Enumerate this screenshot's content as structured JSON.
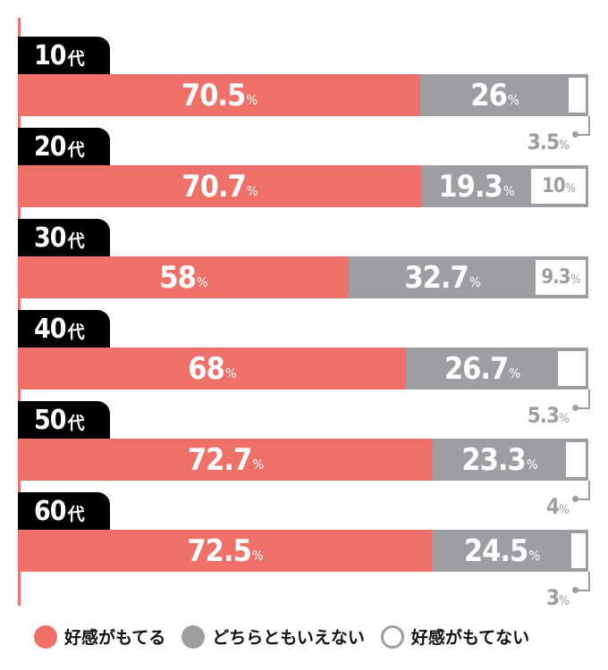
{
  "chart_data": {
    "type": "bar",
    "orientation": "horizontal-stacked-100",
    "categories": [
      "10代",
      "20代",
      "30代",
      "40代",
      "50代",
      "60代"
    ],
    "series": [
      {
        "name": "好感がもてる",
        "color": "#ef7068",
        "values": [
          70.5,
          70.7,
          58,
          68,
          72.7,
          72.5
        ]
      },
      {
        "name": "どちらともいえない",
        "color": "#9e9da2",
        "values": [
          26,
          19.3,
          32.7,
          26.7,
          23.3,
          24.5
        ]
      },
      {
        "name": "好感がもてない",
        "color": "#ffffff",
        "values": [
          3.5,
          10,
          9.3,
          5.3,
          4,
          3
        ]
      }
    ],
    "value_labels": [
      [
        "70.5",
        "26",
        "3.5"
      ],
      [
        "70.7",
        "19.3",
        "10"
      ],
      [
        "58",
        "32.7",
        "9.3"
      ],
      [
        "68",
        "26.7",
        "5.3"
      ],
      [
        "72.7",
        "23.3",
        "4"
      ],
      [
        "72.5",
        "24.5",
        "3"
      ]
    ],
    "unit": "%",
    "xlim": [
      0,
      100
    ],
    "grid": false,
    "legend_position": "bottom"
  },
  "rows": [
    {
      "age": "10",
      "suffix": "代",
      "pos": "70.5",
      "neu": "26",
      "neg": "3.5",
      "neg_outside": true
    },
    {
      "age": "20",
      "suffix": "代",
      "pos": "70.7",
      "neu": "19.3",
      "neg": "10",
      "neg_outside": false
    },
    {
      "age": "30",
      "suffix": "代",
      "pos": "58",
      "neu": "32.7",
      "neg": "9.3",
      "neg_outside": false
    },
    {
      "age": "40",
      "suffix": "代",
      "pos": "68",
      "neu": "26.7",
      "neg": "5.3",
      "neg_outside": true
    },
    {
      "age": "50",
      "suffix": "代",
      "pos": "72.7",
      "neu": "23.3",
      "neg": "4",
      "neg_outside": true
    },
    {
      "age": "60",
      "suffix": "代",
      "pos": "72.5",
      "neu": "24.5",
      "neg": "3",
      "neg_outside": true
    }
  ],
  "percent_sign": "%",
  "legend": [
    {
      "label": "好感がもてる",
      "color": "#ef7068",
      "style": "filled"
    },
    {
      "label": "どちらともいえない",
      "color": "#9e9da2",
      "style": "filled"
    },
    {
      "label": "好感がもてない",
      "color": "#9e9da2",
      "style": "outline"
    }
  ]
}
